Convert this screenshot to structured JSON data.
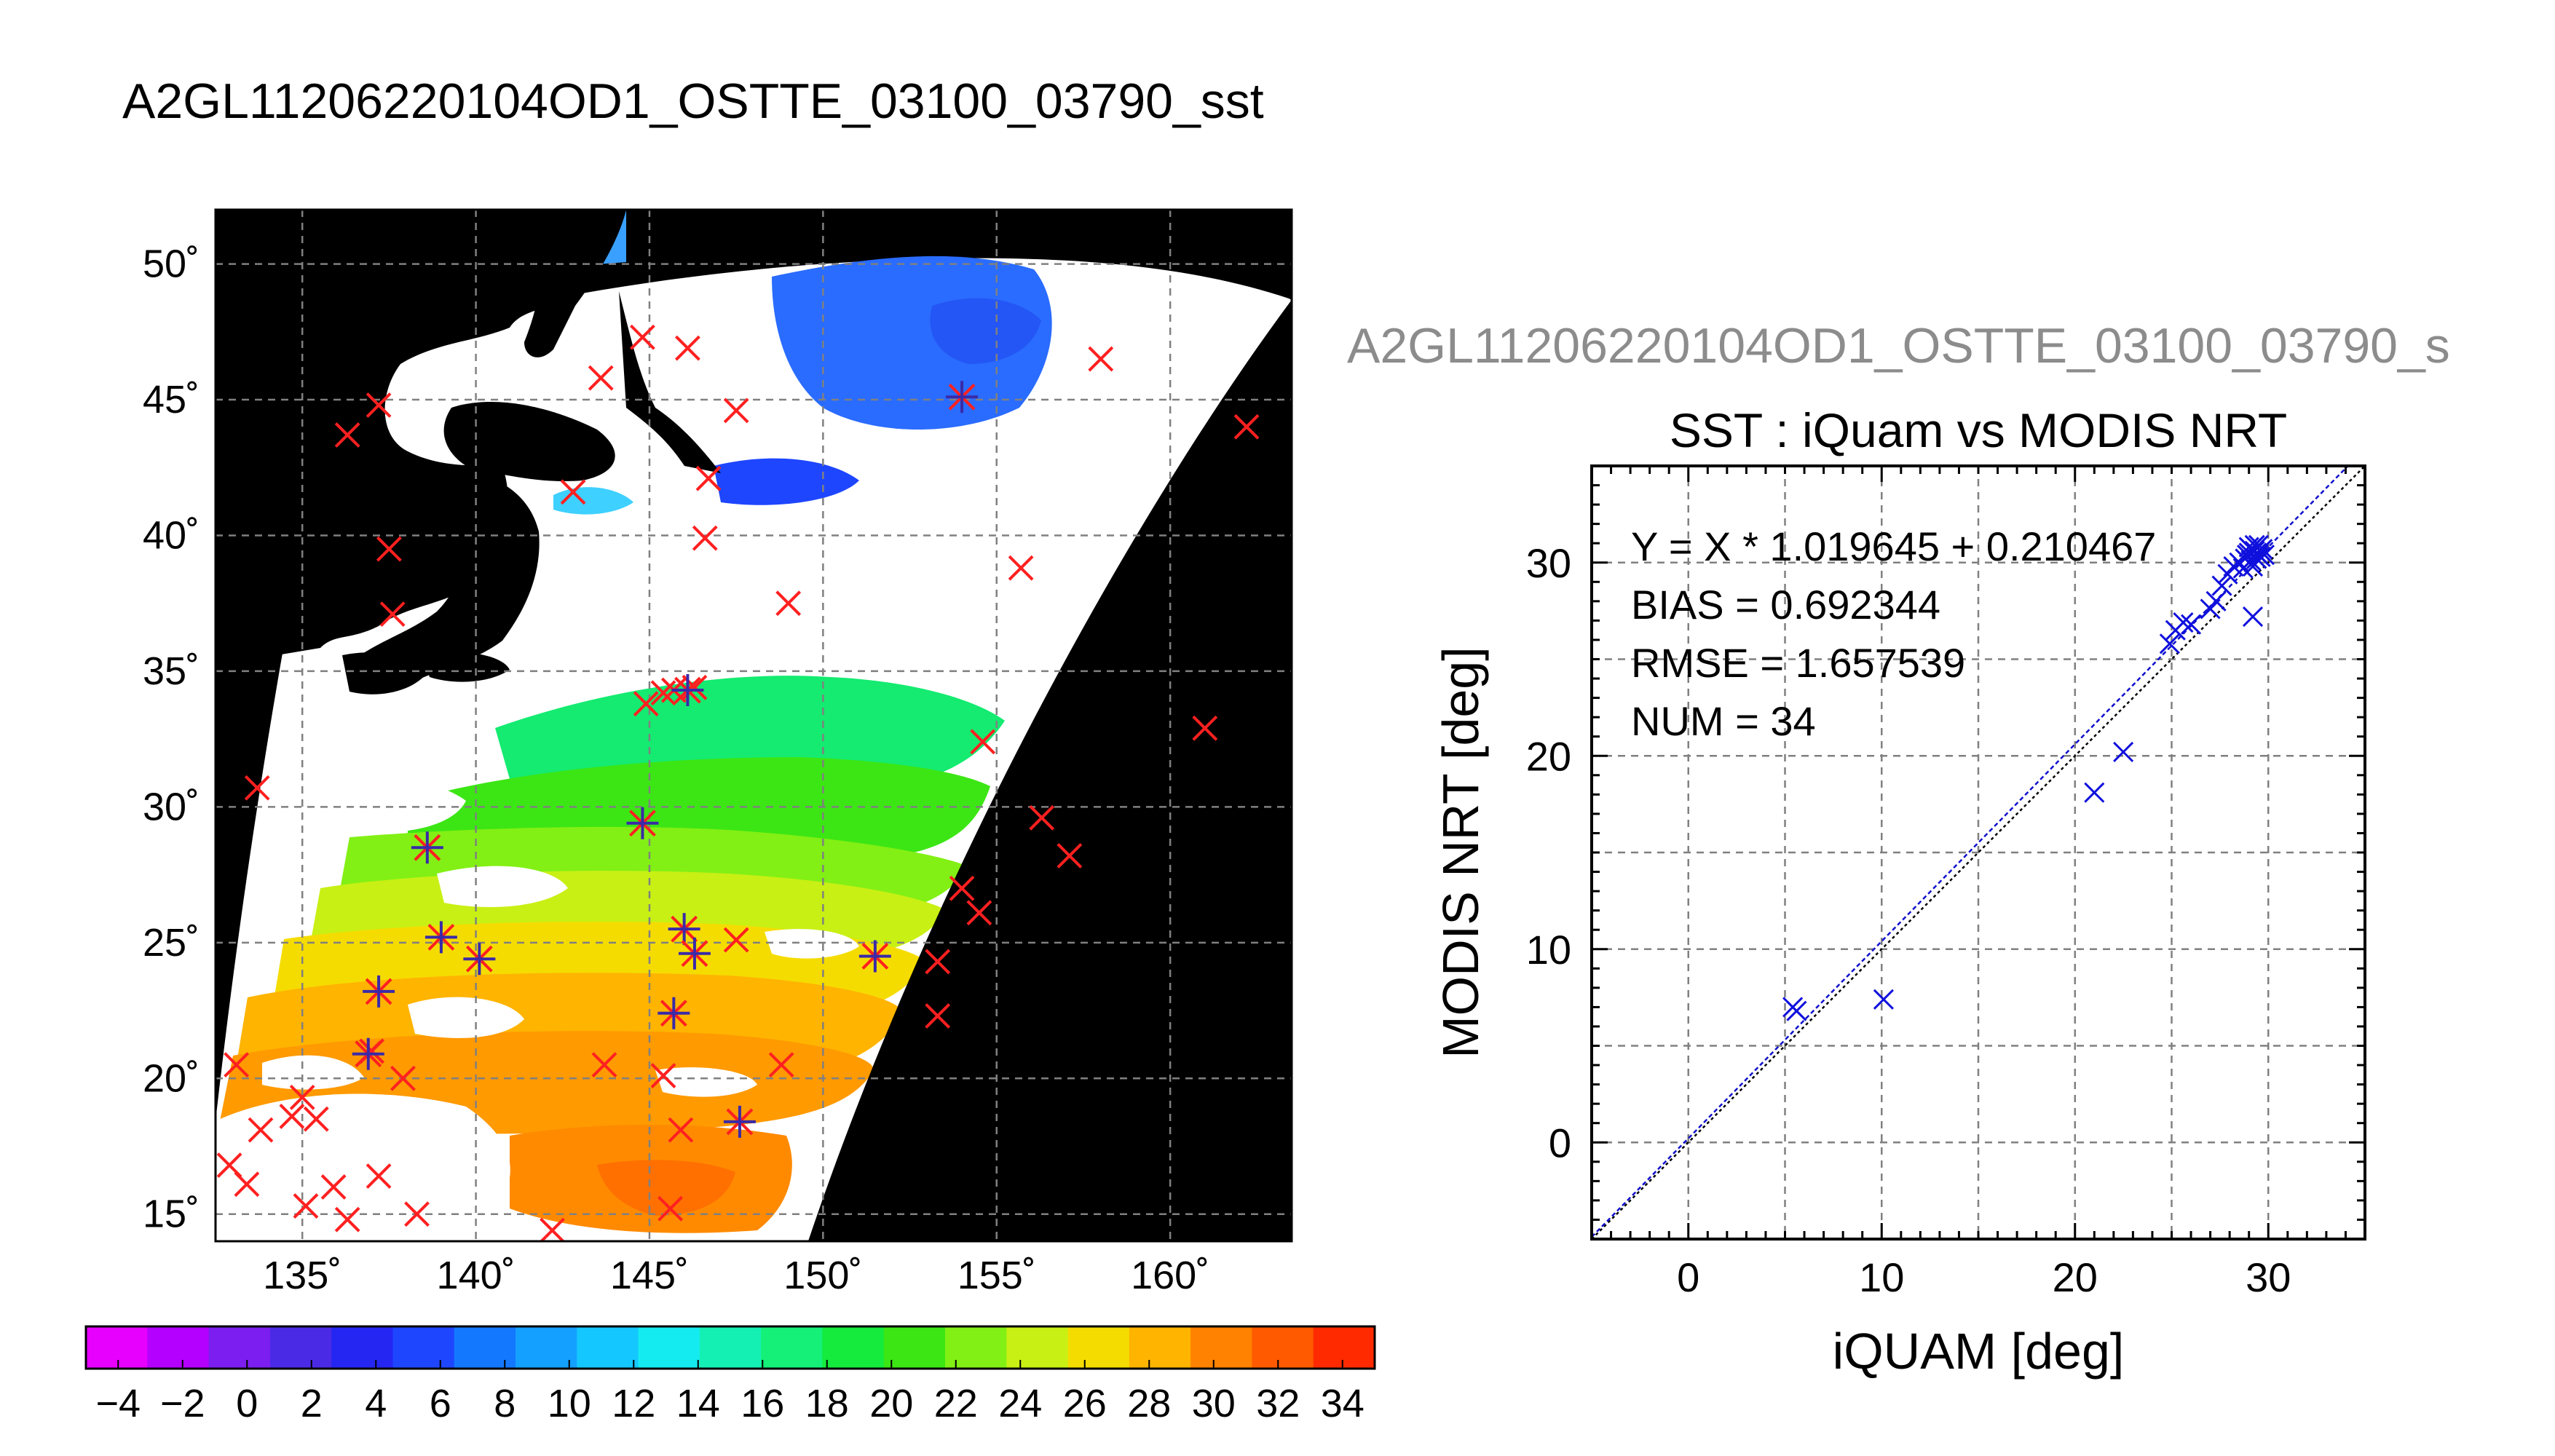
{
  "page": {
    "title": "A2GL11206220104OD1_OSTTE_03100_03790_sst",
    "scatter_title_clipped": "A2GL11206220104OD1_OSTTE_03100_03790_s"
  },
  "colors": {
    "land": "#000000",
    "cloud": "#ffffff",
    "iquam_marker": "#ff2020",
    "matchup_marker": "#3a2aa8",
    "scatter_marker": "#1010dd",
    "fit_line": "#1010cc",
    "grid": "#808080"
  },
  "chart_data": [
    {
      "type": "heatmap",
      "name": "sst-map",
      "xlabel": "",
      "ylabel": "",
      "lon_range": [
        132.5,
        163.5
      ],
      "lat_range": [
        14,
        52
      ],
      "lon_ticks": [
        135,
        140,
        145,
        150,
        155,
        160
      ],
      "lat_ticks": [
        15,
        20,
        25,
        30,
        35,
        40,
        45,
        50
      ],
      "lon_tick_labels": [
        "135˚",
        "140˚",
        "145˚",
        "150˚",
        "155˚",
        "160˚"
      ],
      "lat_tick_labels": [
        "15˚",
        "20˚",
        "25˚",
        "30˚",
        "35˚",
        "40˚",
        "45˚",
        "50˚"
      ],
      "grid": true,
      "colorbar": {
        "min": -5,
        "max": 35,
        "step": 2,
        "tick_labels": [
          "−4",
          "−2",
          "0",
          "2",
          "4",
          "6",
          "8",
          "10",
          "12",
          "14",
          "16",
          "18",
          "20",
          "22",
          "24",
          "26",
          "28",
          "30",
          "32",
          "34"
        ],
        "colors": [
          "#e800ff",
          "#b400ff",
          "#7d1ef0",
          "#4b2ae6",
          "#2626f2",
          "#1e46ff",
          "#1478ff",
          "#14a0ff",
          "#14c8ff",
          "#14ebf0",
          "#14f0b4",
          "#14f078",
          "#14eb3c",
          "#3ce614",
          "#82f014",
          "#c8f014",
          "#f5dc00",
          "#ffb400",
          "#ff8200",
          "#ff5a00",
          "#ff2a00"
        ]
      },
      "iquam_points": [
        [
          144.8,
          47.3
        ],
        [
          146.1,
          46.9
        ],
        [
          143.6,
          45.8
        ],
        [
          137.2,
          44.8
        ],
        [
          147.5,
          44.6
        ],
        [
          136.3,
          43.7
        ],
        [
          158.0,
          46.5
        ],
        [
          162.2,
          44.0
        ],
        [
          146.7,
          42.1
        ],
        [
          142.8,
          41.6
        ],
        [
          137.5,
          39.5
        ],
        [
          146.6,
          39.9
        ],
        [
          155.7,
          38.8
        ],
        [
          149.0,
          37.5
        ],
        [
          137.6,
          37.1
        ],
        [
          144.9,
          33.8
        ],
        [
          145.4,
          34.2
        ],
        [
          154.6,
          32.4
        ],
        [
          161.0,
          32.9
        ],
        [
          133.7,
          30.7
        ],
        [
          156.3,
          29.6
        ],
        [
          157.1,
          28.2
        ],
        [
          154.0,
          27.0
        ],
        [
          154.5,
          26.1
        ],
        [
          147.5,
          25.1
        ],
        [
          153.3,
          24.3
        ],
        [
          153.3,
          22.3
        ],
        [
          137.0,
          21.0
        ],
        [
          137.9,
          20.0
        ],
        [
          133.1,
          20.5
        ],
        [
          134.7,
          18.6
        ],
        [
          135.4,
          18.5
        ],
        [
          135.0,
          19.3
        ],
        [
          133.8,
          18.1
        ],
        [
          132.9,
          16.8
        ],
        [
          133.4,
          16.1
        ],
        [
          135.1,
          15.3
        ],
        [
          135.9,
          16.0
        ],
        [
          136.3,
          14.8
        ],
        [
          137.2,
          16.4
        ],
        [
          138.3,
          15.0
        ],
        [
          142.2,
          14.4
        ],
        [
          145.6,
          15.2
        ],
        [
          145.4,
          20.1
        ],
        [
          145.9,
          18.1
        ],
        [
          143.7,
          20.5
        ],
        [
          148.8,
          20.5
        ],
        [
          145.7,
          34.3
        ],
        [
          146.3,
          34.4
        ]
      ],
      "matchup_points": [
        [
          138.6,
          28.5
        ],
        [
          144.8,
          29.4
        ],
        [
          139.0,
          25.2
        ],
        [
          140.1,
          24.4
        ],
        [
          137.2,
          23.2
        ],
        [
          136.9,
          20.9
        ],
        [
          146.0,
          25.5
        ],
        [
          146.3,
          24.6
        ],
        [
          145.7,
          22.4
        ],
        [
          151.5,
          24.5
        ],
        [
          147.6,
          18.4
        ],
        [
          154.0,
          45.1
        ],
        [
          146.1,
          34.3
        ]
      ]
    },
    {
      "type": "scatter",
      "name": "iquam-vs-modis",
      "title": "SST : iQuam vs MODIS NRT",
      "xlabel": "iQUAM [deg]",
      "ylabel": "MODIS NRT [deg]",
      "xlim": [
        -5,
        35
      ],
      "ylim": [
        -5,
        35
      ],
      "xticks": [
        0,
        10,
        20,
        30
      ],
      "yticks": [
        0,
        10,
        20,
        30
      ],
      "grid": true,
      "annotations": [
        "Y = X * 1.019645 + 0.210467",
        "BIAS = 0.692344",
        "RMSE = 1.657539",
        "NUM = 34"
      ],
      "fit": {
        "slope": 1.019645,
        "intercept": 0.210467
      },
      "points": [
        [
          5.4,
          7.0
        ],
        [
          5.6,
          6.8
        ],
        [
          10.1,
          7.4
        ],
        [
          21.0,
          18.1
        ],
        [
          22.5,
          20.2
        ],
        [
          24.9,
          25.8
        ],
        [
          25.2,
          26.5
        ],
        [
          25.6,
          26.9
        ],
        [
          26.0,
          26.8
        ],
        [
          27.0,
          27.6
        ],
        [
          27.3,
          28.0
        ],
        [
          27.6,
          28.8
        ],
        [
          27.9,
          29.4
        ],
        [
          28.2,
          29.8
        ],
        [
          28.5,
          30.0
        ],
        [
          28.7,
          29.7
        ],
        [
          28.9,
          30.4
        ],
        [
          29.0,
          30.8
        ],
        [
          29.1,
          30.1
        ],
        [
          29.2,
          29.8
        ],
        [
          29.3,
          30.6
        ],
        [
          29.4,
          30.2
        ],
        [
          29.5,
          30.9
        ],
        [
          29.6,
          30.3
        ],
        [
          29.7,
          30.7
        ],
        [
          29.2,
          27.2
        ],
        [
          29.3,
          30.9
        ],
        [
          29.4,
          30.5
        ],
        [
          29.6,
          30.6
        ],
        [
          29.0,
          30.5
        ],
        [
          28.8,
          30.2
        ],
        [
          29.5,
          30.4
        ],
        [
          29.1,
          30.7
        ],
        [
          29.8,
          30.4
        ]
      ]
    }
  ]
}
